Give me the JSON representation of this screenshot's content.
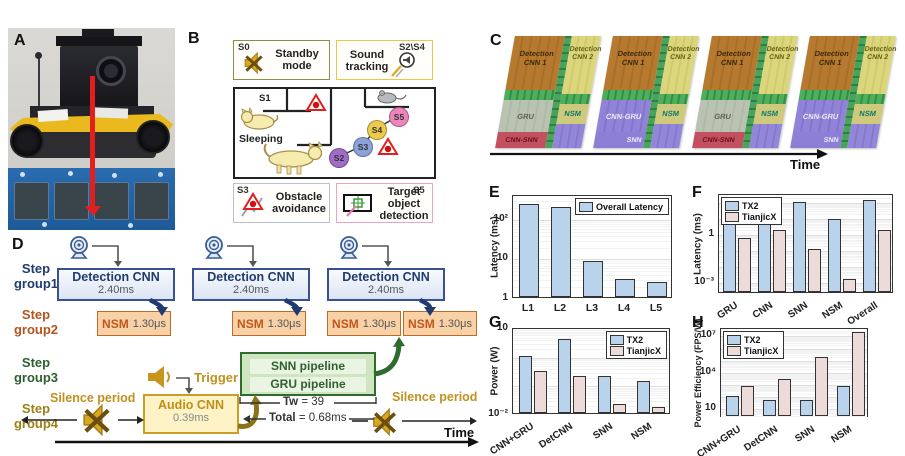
{
  "panels": {
    "a": "A",
    "b": "B",
    "c": "C",
    "d": "D",
    "e": "E",
    "f": "F",
    "g": "G",
    "h": "H"
  },
  "b": {
    "standby": {
      "id": "S0",
      "label": "Standby mode"
    },
    "sound": {
      "id": "S2\\S4",
      "label": "Sound tracking"
    },
    "map": {
      "s1_id": "S1",
      "s1_label": "Sleeping",
      "nodes": [
        {
          "id": "S2",
          "color": "#a06cc8"
        },
        {
          "id": "S3",
          "color": "#8ba3d8"
        },
        {
          "id": "S4",
          "color": "#eccb4c"
        },
        {
          "id": "S5",
          "color": "#ee85ba"
        }
      ]
    },
    "obstacle": {
      "id": "S3",
      "label": "Obstacle avoidance"
    },
    "target": {
      "id": "S5",
      "label": "Target object detection"
    }
  },
  "c": {
    "time_label": "Time",
    "chips": [
      {
        "variant": "gru",
        "left_top": "Detection CNN 1",
        "mid": "GRU",
        "bottom": "CNN-SNN",
        "right_top": "Detection CNN 2",
        "nsm": "NSM"
      },
      {
        "variant": "snn",
        "left_top": "Detection CNN 1",
        "mid": "CNN-GRU",
        "bottom": "SNN",
        "right_top": "Detection CNN 2",
        "nsm": "NSM"
      },
      {
        "variant": "gru",
        "left_top": "Detection CNN 1",
        "mid": "GRU",
        "bottom": "CNN-SNN",
        "right_top": "Detection CNN 2",
        "nsm": "NSM"
      },
      {
        "variant": "snn",
        "left_top": "Detection CNN 1",
        "mid": "CNN-GRU",
        "bottom": "SNN",
        "right_top": "Detection CNN 2",
        "nsm": "NSM"
      }
    ]
  },
  "d": {
    "groups": [
      "Step group1",
      "Step group2",
      "Step group3",
      "Step group4"
    ],
    "detection_cnn": {
      "title": "Detection CNN",
      "time": "2.40ms"
    },
    "nsm": {
      "title": "NSM",
      "time": "1.30μs"
    },
    "pipelines": {
      "snn": "SNN pipeline",
      "gru": "GRU pipeline"
    },
    "tw": {
      "label": "Tw",
      "value": "= 39"
    },
    "total": {
      "label": "Total",
      "value": "= 0.68ms"
    },
    "audio": {
      "title": "Audio CNN",
      "time": "0.39ms"
    },
    "trigger": "Trigger",
    "silence": "Silence period",
    "time_label": "Time"
  },
  "colors": {
    "tx2": "#b9d3ec",
    "tianjicx": "#eddbda"
  },
  "chart_data": [
    {
      "id": "e",
      "type": "bar",
      "ylabel": "Latency (ms)",
      "yscale": "log",
      "ylim": [
        1,
        400
      ],
      "yticks": [
        {
          "v": 1,
          "label": "1"
        },
        {
          "v": 10,
          "label": "10"
        },
        {
          "v": 100,
          "label": "10²"
        }
      ],
      "categories": [
        "L1",
        "L2",
        "L3",
        "L4",
        "L5"
      ],
      "series": [
        {
          "name": "Overall Latency",
          "color": "#b9d3ec",
          "values": [
            230,
            190,
            8,
            2.8,
            2.4
          ]
        }
      ],
      "legend_pos": "top-right",
      "rotate_xlabels": false,
      "grid": "log-minor"
    },
    {
      "id": "f",
      "type": "bar",
      "ylabel": "Latency (ms)",
      "yscale": "log",
      "ylim": [
        0.0002,
        300
      ],
      "yticks": [
        {
          "v": 1,
          "label": "1"
        },
        {
          "v": 0.001,
          "label": "10⁻³"
        }
      ],
      "categories": [
        "GRU",
        "CNN",
        "SNN",
        "NSM",
        "Overall"
      ],
      "series": [
        {
          "name": "TX2",
          "color": "#b9d3ec",
          "values": [
            5.3,
            7.2,
            85,
            6.9,
            105
          ]
        },
        {
          "name": "TianjicX",
          "color": "#eddbda",
          "values": [
            0.45,
            1.4,
            0.09,
            0.0013,
            1.4
          ]
        }
      ],
      "legend_pos": "top-left",
      "rotate_xlabels": true,
      "grid": "log-minor"
    },
    {
      "id": "g",
      "type": "bar",
      "ylabel": "Power (W)",
      "yscale": "log",
      "ylim": [
        0.01,
        10
      ],
      "yticks": [
        {
          "v": 10,
          "label": "10"
        },
        {
          "v": 0.01,
          "label": "10⁻²"
        }
      ],
      "categories": [
        "CNN+GRU",
        "DetCNN",
        "SNN",
        "NSM"
      ],
      "series": [
        {
          "name": "TX2",
          "color": "#b9d3ec",
          "values": [
            1.0,
            3.8,
            0.2,
            0.13
          ]
        },
        {
          "name": "TianjicX",
          "color": "#eddbda",
          "values": [
            0.3,
            0.2,
            0.02,
            0.016
          ]
        }
      ],
      "legend_pos": "top-right",
      "rotate_xlabels": true,
      "grid": "log-minor"
    },
    {
      "id": "h",
      "type": "bar",
      "ylabel": "Power Efficiency (FPS/W)",
      "yscale": "log",
      "ylim": [
        2,
        40000000
      ],
      "yticks": [
        {
          "v": 10,
          "label": "10"
        },
        {
          "v": 10000,
          "label": "10⁴"
        },
        {
          "v": 10000000,
          "label": "10⁷"
        }
      ],
      "categories": [
        "CNN+GRU",
        "DetCNN",
        "SNN",
        "NSM"
      ],
      "series": [
        {
          "name": "TX2",
          "color": "#b9d3ec",
          "values": [
            90,
            40,
            40,
            600
          ]
        },
        {
          "name": "TianjicX",
          "color": "#eddbda",
          "values": [
            600,
            2000,
            150000,
            15000000
          ]
        }
      ],
      "legend_pos": "top-left",
      "rotate_xlabels": true,
      "grid": "log-minor"
    }
  ]
}
